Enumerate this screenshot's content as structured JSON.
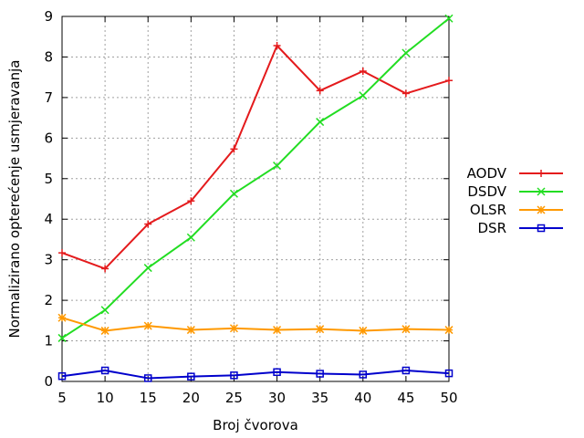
{
  "chart_data": {
    "type": "line",
    "title": "",
    "xlabel": "Broj čvorova",
    "ylabel": "Normalizirano opterećenje usmjeravanja",
    "x": [
      5,
      10,
      15,
      20,
      25,
      30,
      35,
      40,
      45,
      50
    ],
    "xlim": [
      5,
      50
    ],
    "ylim": [
      0,
      9
    ],
    "xticks": [
      "5",
      "10",
      "15",
      "20",
      "25",
      "30",
      "35",
      "40",
      "45",
      "50"
    ],
    "yticks": [
      "0",
      "1",
      "2",
      "3",
      "4",
      "5",
      "6",
      "7",
      "8",
      "9"
    ],
    "grid": true,
    "legend_position": "right",
    "series": [
      {
        "name": "AODV",
        "color": "#e41a1c",
        "marker": "plus",
        "values": [
          3.17,
          2.78,
          3.88,
          4.45,
          5.73,
          8.28,
          7.17,
          7.65,
          7.1,
          7.42
        ]
      },
      {
        "name": "DSDV",
        "color": "#22dd22",
        "marker": "cross",
        "values": [
          1.07,
          1.76,
          2.8,
          3.55,
          4.63,
          5.32,
          6.4,
          7.05,
          8.1,
          8.95
        ]
      },
      {
        "name": "OLSR",
        "color": "#ff9900",
        "marker": "star",
        "values": [
          1.57,
          1.25,
          1.37,
          1.27,
          1.31,
          1.27,
          1.29,
          1.25,
          1.29,
          1.27
        ]
      },
      {
        "name": "DSR",
        "color": "#0000cc",
        "marker": "square",
        "values": [
          0.13,
          0.27,
          0.08,
          0.12,
          0.15,
          0.23,
          0.19,
          0.17,
          0.27,
          0.2
        ]
      }
    ]
  }
}
